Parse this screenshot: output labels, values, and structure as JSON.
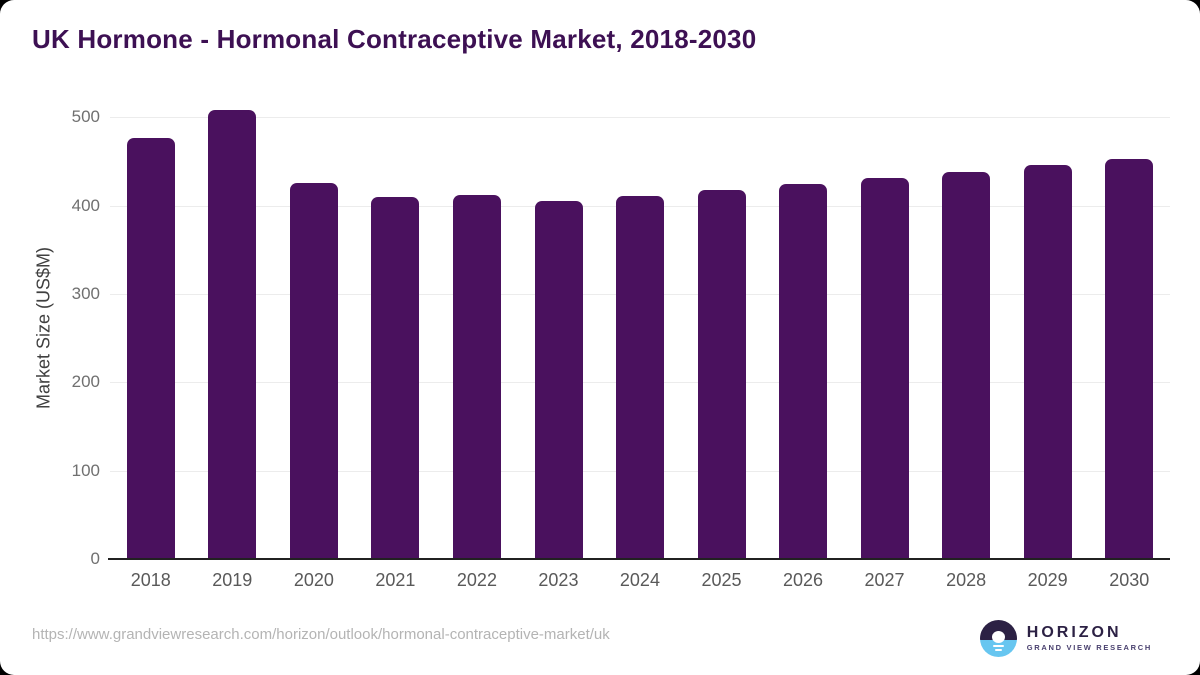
{
  "chart_data": {
    "type": "bar",
    "title": "UK Hormone - Hormonal Contraceptive Market, 2018-2030",
    "categories": [
      "2018",
      "2019",
      "2020",
      "2021",
      "2022",
      "2023",
      "2024",
      "2025",
      "2026",
      "2027",
      "2028",
      "2029",
      "2030"
    ],
    "values": [
      477,
      508,
      426,
      410,
      412,
      405,
      411,
      418,
      424,
      431,
      438,
      446,
      453
    ],
    "xlabel": "",
    "ylabel": "Market Size (US$M)",
    "ylim": [
      0,
      524
    ],
    "yticks": [
      0,
      100,
      200,
      300,
      400,
      500
    ],
    "grid": true,
    "legend": false,
    "bar_color": "#4a115e",
    "title_color": "#3d1053",
    "gridline_color": "#ececec",
    "axis_line_color": "#212121"
  },
  "footer": {
    "source_url": "https://www.grandviewresearch.com/horizon/outlook/hormonal-contraceptive-market/uk",
    "logo": {
      "name": "HORIZON",
      "tagline": "GRAND VIEW RESEARCH"
    }
  }
}
